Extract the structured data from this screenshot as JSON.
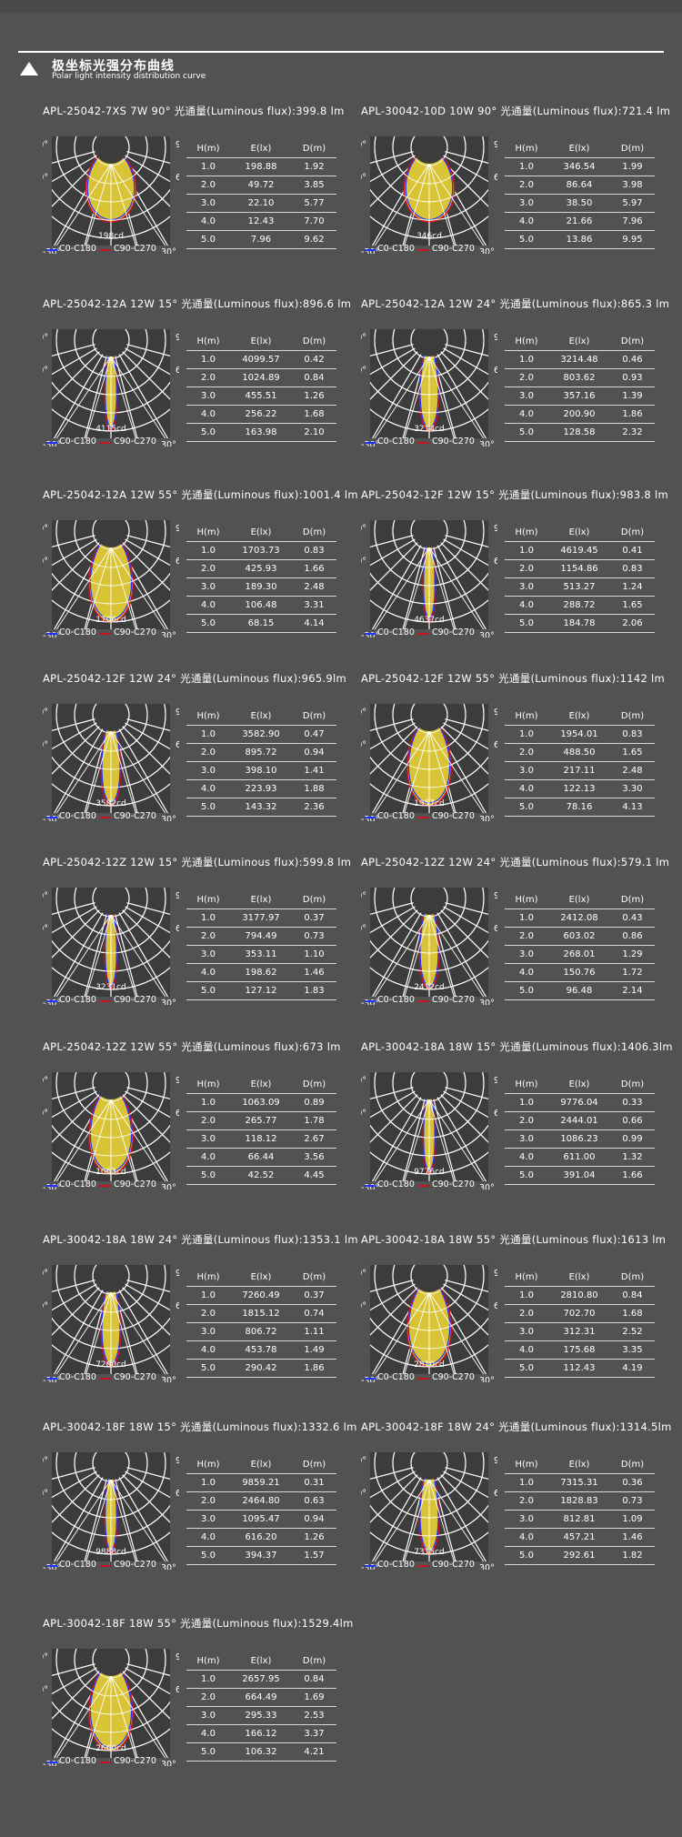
{
  "header": {
    "title_cn": "极坐标光强分布曲线",
    "title_en": "Polar light intensity distribution curve"
  },
  "polar_labels": {
    "left_top": "-90°",
    "left_mid": "-60°",
    "right_top": "90°",
    "right_mid": "60°",
    "bottom_left": "-30°",
    "bottom_right": "30°"
  },
  "legend": {
    "c0": "C0-C180",
    "c90": "C90-C270"
  },
  "colors": {
    "background": "#525252",
    "beam_fill": "#d8c436",
    "c0_line": "#2233ff",
    "c90_line": "#cc1122",
    "grid": "#ffffff"
  },
  "table_headers": [
    "H(m)",
    "E(lx)",
    "D(m)"
  ],
  "products": [
    {
      "title": "APL-25042-7XS  7W 90°  光通量(Luminous flux):399.8 lm",
      "peak": "198cd",
      "beam_deg": 90,
      "rows": [
        [
          "1.0",
          "198.88",
          "1.92"
        ],
        [
          "2.0",
          "49.72",
          "3.85"
        ],
        [
          "3.0",
          "22.10",
          "5.77"
        ],
        [
          "4.0",
          "12.43",
          "7.70"
        ],
        [
          "5.0",
          "7.96",
          "9.62"
        ]
      ]
    },
    {
      "title": "APL-30042-10D 10W 90°  光通量(Luminous flux):721.4 lm",
      "peak": "346cd",
      "beam_deg": 90,
      "rows": [
        [
          "1.0",
          "346.54",
          "1.99"
        ],
        [
          "2.0",
          "86.64",
          "3.98"
        ],
        [
          "3.0",
          "38.50",
          "5.97"
        ],
        [
          "4.0",
          "21.66",
          "7.96"
        ],
        [
          "5.0",
          "13.86",
          "9.95"
        ]
      ]
    },
    {
      "title": "APL-25042-12A  12W  15°  光通量(Luminous flux):896.6 lm",
      "peak": "4115cd",
      "beam_deg": 15,
      "rows": [
        [
          "1.0",
          "4099.57",
          "0.42"
        ],
        [
          "2.0",
          "1024.89",
          "0.84"
        ],
        [
          "3.0",
          "455.51",
          "1.26"
        ],
        [
          "4.0",
          "256.22",
          "1.68"
        ],
        [
          "5.0",
          "163.98",
          "2.10"
        ]
      ]
    },
    {
      "title": "APL-25042-12A  12W 24°  光通量(Luminous flux):865.3 lm",
      "peak": "3214cd",
      "beam_deg": 24,
      "rows": [
        [
          "1.0",
          "3214.48",
          "0.46"
        ],
        [
          "2.0",
          "803.62",
          "0.93"
        ],
        [
          "3.0",
          "357.16",
          "1.39"
        ],
        [
          "4.0",
          "200.90",
          "1.86"
        ],
        [
          "5.0",
          "128.58",
          "2.32"
        ]
      ]
    },
    {
      "title": "APL-25042-12A  12W  55°  光通量(Luminous flux):1001.4 lm",
      "peak": "1706cd",
      "beam_deg": 55,
      "rows": [
        [
          "1.0",
          "1703.73",
          "0.83"
        ],
        [
          "2.0",
          "425.93",
          "1.66"
        ],
        [
          "3.0",
          "189.30",
          "2.48"
        ],
        [
          "4.0",
          "106.48",
          "3.31"
        ],
        [
          "5.0",
          "68.15",
          "4.14"
        ]
      ]
    },
    {
      "title": "APL-25042-12F 12W 15°  光通量(Luminous flux):983.8 lm",
      "peak": "4637cd",
      "beam_deg": 15,
      "rows": [
        [
          "1.0",
          "4619.45",
          "0.41"
        ],
        [
          "2.0",
          "1154.86",
          "0.83"
        ],
        [
          "3.0",
          "513.27",
          "1.24"
        ],
        [
          "4.0",
          "288.72",
          "1.65"
        ],
        [
          "5.0",
          "184.78",
          "2.06"
        ]
      ]
    },
    {
      "title": "APL-25042-12F  12W  24°  光通量(Luminous flux):965.9lm",
      "peak": "3582cd",
      "beam_deg": 24,
      "rows": [
        [
          "1.0",
          "3582.90",
          "0.47"
        ],
        [
          "2.0",
          "895.72",
          "0.94"
        ],
        [
          "3.0",
          "398.10",
          "1.41"
        ],
        [
          "4.0",
          "223.93",
          "1.88"
        ],
        [
          "5.0",
          "143.32",
          "2.36"
        ]
      ]
    },
    {
      "title": "APL-25042-12F 12W 55°  光通量(Luminous flux):1142 lm",
      "peak": "1957cd",
      "beam_deg": 55,
      "rows": [
        [
          "1.0",
          "1954.01",
          "0.83"
        ],
        [
          "2.0",
          "488.50",
          "1.65"
        ],
        [
          "3.0",
          "217.11",
          "2.48"
        ],
        [
          "4.0",
          "122.13",
          "3.30"
        ],
        [
          "5.0",
          "78.16",
          "4.13"
        ]
      ]
    },
    {
      "title": "APL-25042-12Z  12W  15°  光通量(Luminous flux):599.8 lm",
      "peak": "3231cd",
      "beam_deg": 15,
      "rows": [
        [
          "1.0",
          "3177.97",
          "0.37"
        ],
        [
          "2.0",
          "794.49",
          "0.73"
        ],
        [
          "3.0",
          "353.11",
          "1.10"
        ],
        [
          "4.0",
          "198.62",
          "1.46"
        ],
        [
          "5.0",
          "127.12",
          "1.83"
        ]
      ]
    },
    {
      "title": "APL-25042-12Z  12W  24°  光通量(Luminous flux):579.1 lm",
      "peak": "2412cd",
      "beam_deg": 24,
      "rows": [
        [
          "1.0",
          "2412.08",
          "0.43"
        ],
        [
          "2.0",
          "603.02",
          "0.86"
        ],
        [
          "3.0",
          "268.01",
          "1.29"
        ],
        [
          "4.0",
          "150.76",
          "1.72"
        ],
        [
          "5.0",
          "96.48",
          "2.14"
        ]
      ]
    },
    {
      "title": "APL-25042-12Z  12W  55°  光通量(Luminous flux):673 lm",
      "peak": "1063cd",
      "beam_deg": 55,
      "rows": [
        [
          "1.0",
          "1063.09",
          "0.89"
        ],
        [
          "2.0",
          "265.77",
          "1.78"
        ],
        [
          "3.0",
          "118.12",
          "2.67"
        ],
        [
          "4.0",
          "66.44",
          "3.56"
        ],
        [
          "5.0",
          "42.52",
          "4.45"
        ]
      ]
    },
    {
      "title": "APL-30042-18A  18W  15°  光通量(Luminous flux):1406.3lm",
      "peak": "9776cd",
      "beam_deg": 15,
      "rows": [
        [
          "1.0",
          "9776.04",
          "0.33"
        ],
        [
          "2.0",
          "2444.01",
          "0.66"
        ],
        [
          "3.0",
          "1086.23",
          "0.99"
        ],
        [
          "4.0",
          "611.00",
          "1.32"
        ],
        [
          "5.0",
          "391.04",
          "1.66"
        ]
      ]
    },
    {
      "title": "APL-30042-18A  18W  24°  光通量(Luminous flux):1353.1 lm",
      "peak": "7260cd",
      "beam_deg": 24,
      "rows": [
        [
          "1.0",
          "7260.49",
          "0.37"
        ],
        [
          "2.0",
          "1815.12",
          "0.74"
        ],
        [
          "3.0",
          "806.72",
          "1.11"
        ],
        [
          "4.0",
          "453.78",
          "1.49"
        ],
        [
          "5.0",
          "290.42",
          "1.86"
        ]
      ]
    },
    {
      "title": "APL-30042-18A  18W  55°  光通量(Luminous flux):1613 lm",
      "peak": "2810cd",
      "beam_deg": 55,
      "rows": [
        [
          "1.0",
          "2810.80",
          "0.84"
        ],
        [
          "2.0",
          "702.70",
          "1.68"
        ],
        [
          "3.0",
          "312.31",
          "2.52"
        ],
        [
          "4.0",
          "175.68",
          "3.35"
        ],
        [
          "5.0",
          "112.43",
          "4.19"
        ]
      ]
    },
    {
      "title": "APL-30042-18F  18W  15°  光通量(Luminous flux):1332.6 lm",
      "peak": "9888cd",
      "beam_deg": 15,
      "rows": [
        [
          "1.0",
          "9859.21",
          "0.31"
        ],
        [
          "2.0",
          "2464.80",
          "0.63"
        ],
        [
          "3.0",
          "1095.47",
          "0.94"
        ],
        [
          "4.0",
          "616.20",
          "1.26"
        ],
        [
          "5.0",
          "394.37",
          "1.57"
        ]
      ]
    },
    {
      "title": "APL-30042-18F  18W  24°  光通量(Luminous flux):1314.5lm",
      "peak": "7315cd",
      "beam_deg": 24,
      "rows": [
        [
          "1.0",
          "7315.31",
          "0.36"
        ],
        [
          "2.0",
          "1828.83",
          "0.73"
        ],
        [
          "3.0",
          "812.81",
          "1.09"
        ],
        [
          "4.0",
          "457.21",
          "1.46"
        ],
        [
          "5.0",
          "292.61",
          "1.82"
        ]
      ]
    },
    {
      "title": "APL-30042-18F  18W  55°  光通量(Luminous flux):1529.4lm",
      "peak": "2660cd",
      "beam_deg": 55,
      "rows": [
        [
          "1.0",
          "2657.95",
          "0.84"
        ],
        [
          "2.0",
          "664.49",
          "1.69"
        ],
        [
          "3.0",
          "295.33",
          "2.53"
        ],
        [
          "4.0",
          "166.12",
          "3.37"
        ],
        [
          "5.0",
          "106.32",
          "4.21"
        ]
      ]
    }
  ]
}
